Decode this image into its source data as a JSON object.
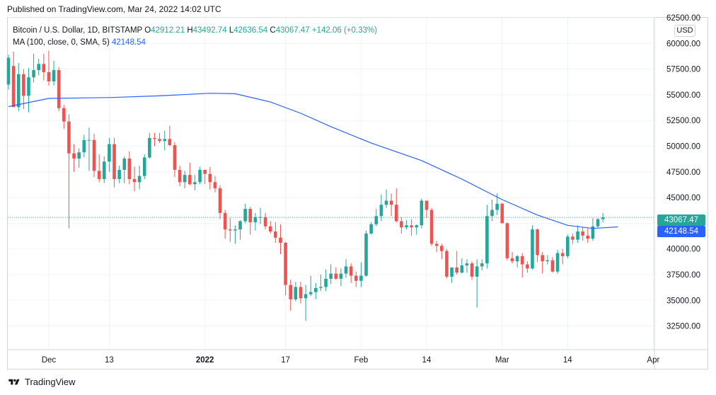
{
  "published": "Published on TradingView.com, Mar 24, 2022 14:02 UTC",
  "footer": {
    "brand": "TradingView",
    "logo_icon": "tradingview-logo-icon"
  },
  "legend": {
    "symbol": "Bitcoin / U.S. Dollar, 1D, BITSTAMP",
    "o_label": "O",
    "o": "42912.21",
    "h_label": "H",
    "h": "43492.74",
    "l_label": "L",
    "l": "42636.54",
    "c_label": "C",
    "c": "43067.47",
    "change": "+142.06 (+0.33%)",
    "ma_label": "MA (100, close, 0, SMA, 5)",
    "ma_value": "42148.54"
  },
  "currency": "USD",
  "last_price": "43067.47",
  "ma_price": "42148.54",
  "colors": {
    "up": "#26a69a",
    "down": "#ef5350",
    "ma": "#2962ff",
    "grid": "#f0f3fa"
  },
  "chart_data": {
    "type": "candlestick",
    "title": "Bitcoin / U.S. Dollar, 1D, BITSTAMP",
    "ylim": [
      30200,
      62500
    ],
    "y_ticks": [
      32500,
      35000,
      37500,
      40000,
      42500,
      45000,
      47500,
      50000,
      52500,
      55000,
      57500,
      60000,
      62500
    ],
    "y_tick_labels": [
      "32500.00",
      "35000.00",
      "37500.00",
      "40000.00",
      "42500.00",
      "45000.00",
      "47500.00",
      "50000.00",
      "52500.00",
      "55000.00",
      "57500.00",
      "60000.00",
      "62500.00"
    ],
    "x_ticks": [
      {
        "label": "Dec",
        "index": 8,
        "bold": false
      },
      {
        "label": "13",
        "index": 20,
        "bold": false
      },
      {
        "label": "2022",
        "index": 39,
        "bold": true
      },
      {
        "label": "17",
        "index": 55,
        "bold": false
      },
      {
        "label": "Feb",
        "index": 70,
        "bold": false
      },
      {
        "label": "14",
        "index": 83,
        "bold": false
      },
      {
        "label": "Mar",
        "index": 98,
        "bold": false
      },
      {
        "label": "14",
        "index": 111,
        "bold": false
      },
      {
        "label": "Apr",
        "index": 128,
        "bold": false
      }
    ],
    "candles": [
      [
        56000,
        58900,
        55500,
        58600
      ],
      [
        57800,
        59200,
        53900,
        53800
      ],
      [
        53800,
        58100,
        53400,
        57000
      ],
      [
        57000,
        57500,
        53600,
        54900
      ],
      [
        54900,
        57600,
        53300,
        56700
      ],
      [
        56700,
        59000,
        56200,
        57400
      ],
      [
        57400,
        58500,
        56900,
        58000
      ],
      [
        58000,
        59000,
        56400,
        57200
      ],
      [
        57200,
        59300,
        55900,
        56300
      ],
      [
        56300,
        58300,
        55900,
        57400
      ],
      [
        57400,
        57700,
        53400,
        53700
      ],
      [
        53700,
        54000,
        51700,
        52400
      ],
      [
        52400,
        53100,
        42000,
        49300
      ],
      [
        49300,
        50200,
        47500,
        48800
      ],
      [
        48800,
        49800,
        47900,
        49400
      ],
      [
        49400,
        51100,
        48900,
        50600
      ],
      [
        50600,
        51800,
        47600,
        50600
      ],
      [
        50600,
        51200,
        47000,
        47600
      ],
      [
        47600,
        49200,
        46500,
        46800
      ],
      [
        46800,
        49000,
        46400,
        48500
      ],
      [
        48500,
        50800,
        47500,
        50200
      ],
      [
        50200,
        50800,
        46000,
        46800
      ],
      [
        46800,
        48100,
        46400,
        47700
      ],
      [
        47700,
        49000,
        46400,
        48800
      ],
      [
        48800,
        49500,
        46300,
        46800
      ],
      [
        46800,
        48000,
        45600,
        46500
      ],
      [
        46500,
        48100,
        45800,
        47100
      ],
      [
        47100,
        49200,
        46800,
        48900
      ],
      [
        48900,
        51300,
        48800,
        50800
      ],
      [
        50800,
        51300,
        50000,
        50700
      ],
      [
        50700,
        51300,
        50300,
        50500
      ],
      [
        50500,
        51500,
        49600,
        50700
      ],
      [
        50700,
        52000,
        50000,
        50100
      ],
      [
        50100,
        50400,
        47000,
        47700
      ],
      [
        47700,
        48100,
        46100,
        46500
      ],
      [
        46500,
        47600,
        45900,
        47200
      ],
      [
        47200,
        48400,
        46200,
        46300
      ],
      [
        46300,
        47200,
        45700,
        46500
      ],
      [
        46500,
        48000,
        46300,
        47700
      ],
      [
        47700,
        47700,
        46300,
        47300
      ],
      [
        47300,
        48000,
        45800,
        46500
      ],
      [
        46500,
        47100,
        45500,
        45900
      ],
      [
        45900,
        46200,
        42900,
        43500
      ],
      [
        43500,
        43800,
        41000,
        41900
      ],
      [
        41900,
        43000,
        40700,
        41800
      ],
      [
        41800,
        42300,
        40500,
        41900
      ],
      [
        41900,
        42800,
        40900,
        42700
      ],
      [
        42700,
        44400,
        42500,
        43900
      ],
      [
        43900,
        44100,
        41400,
        42600
      ],
      [
        42600,
        43500,
        41800,
        43100
      ],
      [
        43100,
        44000,
        42400,
        43100
      ],
      [
        43100,
        43500,
        41900,
        42200
      ],
      [
        42200,
        42700,
        41500,
        41700
      ],
      [
        41700,
        42600,
        40600,
        41100
      ],
      [
        41100,
        42400,
        39500,
        40600
      ],
      [
        40600,
        40700,
        35500,
        36500
      ],
      [
        36500,
        37000,
        34000,
        35100
      ],
      [
        35100,
        36800,
        34900,
        36300
      ],
      [
        36300,
        36800,
        34700,
        35200
      ],
      [
        35200,
        36500,
        33000,
        35600
      ],
      [
        35600,
        37400,
        35400,
        35800
      ],
      [
        35800,
        36700,
        35100,
        36200
      ],
      [
        36200,
        37500,
        35900,
        36300
      ],
      [
        36300,
        38000,
        35900,
        37100
      ],
      [
        37100,
        38500,
        36600,
        37600
      ],
      [
        37600,
        38200,
        37000,
        37100
      ],
      [
        37100,
        38100,
        36400,
        37600
      ],
      [
        37600,
        39000,
        37200,
        38300
      ],
      [
        38300,
        38600,
        36700,
        37400
      ],
      [
        37400,
        37800,
        36300,
        36900
      ],
      [
        36900,
        38700,
        36300,
        37400
      ],
      [
        37400,
        41800,
        37300,
        41500
      ],
      [
        41500,
        42600,
        41400,
        42400
      ],
      [
        42400,
        43900,
        42200,
        43200
      ],
      [
        43200,
        45300,
        42700,
        44300
      ],
      [
        44300,
        45800,
        44000,
        44700
      ],
      [
        44700,
        45400,
        43200,
        44300
      ],
      [
        44300,
        45900,
        42600,
        42700
      ],
      [
        42700,
        43100,
        41500,
        42100
      ],
      [
        42100,
        42800,
        41900,
        42300
      ],
      [
        42300,
        42900,
        41300,
        42100
      ],
      [
        42100,
        42400,
        41400,
        42300
      ],
      [
        42300,
        44900,
        42000,
        44700
      ],
      [
        44700,
        44700,
        43000,
        43800
      ],
      [
        43800,
        44000,
        40300,
        40500
      ],
      [
        40500,
        40800,
        39700,
        40300
      ],
      [
        40300,
        40500,
        39000,
        39800
      ],
      [
        39800,
        40000,
        37100,
        37300
      ],
      [
        37300,
        38000,
        36700,
        38200
      ],
      [
        38200,
        39800,
        37500,
        37700
      ],
      [
        37700,
        39100,
        37600,
        38400
      ],
      [
        38400,
        39000,
        37700,
        38600
      ],
      [
        38600,
        38800,
        37000,
        37300
      ],
      [
        37300,
        39000,
        34300,
        38300
      ],
      [
        38300,
        39000,
        37900,
        38600
      ],
      [
        38600,
        44300,
        38100,
        43200
      ],
      [
        43200,
        44800,
        42700,
        43800
      ],
      [
        43800,
        45400,
        43300,
        44400
      ],
      [
        44400,
        44500,
        42500,
        42500
      ],
      [
        42500,
        42600,
        38900,
        39100
      ],
      [
        39100,
        39700,
        38600,
        38800
      ],
      [
        38800,
        39400,
        38200,
        39300
      ],
      [
        39300,
        39600,
        37200,
        38500
      ],
      [
        38500,
        38800,
        37700,
        38100
      ],
      [
        38100,
        42300,
        38000,
        41900
      ],
      [
        41900,
        42000,
        38700,
        39400
      ],
      [
        39400,
        39700,
        37600,
        38800
      ],
      [
        38800,
        39400,
        38500,
        38900
      ],
      [
        38900,
        39200,
        37700,
        37800
      ],
      [
        37800,
        39900,
        37600,
        39600
      ],
      [
        39600,
        40000,
        38500,
        39300
      ],
      [
        39300,
        41400,
        39100,
        41200
      ],
      [
        41200,
        41500,
        40500,
        40900
      ],
      [
        40900,
        42300,
        40600,
        41700
      ],
      [
        41700,
        42100,
        40800,
        41300
      ],
      [
        41300,
        42000,
        40600,
        41000
      ],
      [
        41000,
        43000,
        40800,
        42200
      ],
      [
        42200,
        43000,
        42000,
        42900
      ],
      [
        42900,
        43500,
        42600,
        43067
      ]
    ],
    "ma": [
      [
        0,
        53850
      ],
      [
        8,
        54650
      ],
      [
        20,
        54730
      ],
      [
        30,
        54900
      ],
      [
        40,
        55150
      ],
      [
        45,
        55100
      ],
      [
        52,
        54300
      ],
      [
        58,
        53200
      ],
      [
        64,
        51900
      ],
      [
        72,
        50300
      ],
      [
        82,
        48600
      ],
      [
        90,
        46800
      ],
      [
        98,
        44800
      ],
      [
        105,
        43300
      ],
      [
        111,
        42300
      ],
      [
        116,
        42000
      ],
      [
        121,
        42148
      ]
    ]
  }
}
